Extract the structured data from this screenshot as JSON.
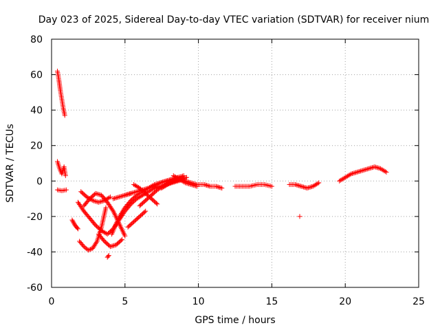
{
  "chart_data": {
    "type": "scatter",
    "title": "Day 023 of 2025, Sidereal Day-to-day VTEC variation (SDTVAR) for receiver nium",
    "xlabel": "GPS time / hours",
    "ylabel": "SDTVAR / TECUs",
    "xlim": [
      0,
      25
    ],
    "ylim": [
      -60,
      80
    ],
    "xticks": [
      0,
      5,
      10,
      15,
      20,
      25
    ],
    "yticks": [
      -60,
      -40,
      -20,
      0,
      20,
      40,
      60,
      80
    ],
    "grid": true,
    "marker": "+",
    "color": "#ff0000",
    "segments": [
      {
        "x": [
          0.4,
          0.5,
          0.6,
          0.7,
          0.8,
          0.9
        ],
        "y": [
          62,
          57,
          51,
          46,
          41,
          37
        ]
      },
      {
        "x": [
          0.4,
          0.55,
          0.7,
          0.85,
          0.95
        ],
        "y": [
          11,
          7,
          4,
          8,
          3
        ]
      },
      {
        "x": [
          0.4,
          0.7,
          1.0
        ],
        "y": [
          -5,
          -5.5,
          -5
        ]
      },
      {
        "x": [
          1.4,
          1.6,
          1.8
        ],
        "y": [
          -22,
          -25,
          -27
        ]
      },
      {
        "x": [
          1.8,
          2.2,
          2.6,
          3.0,
          3.4,
          3.8,
          4.2,
          4.6,
          5.0,
          5.4,
          5.8,
          6.2,
          6.6,
          7.0,
          7.4,
          7.8,
          8.2,
          8.6,
          9.0
        ],
        "y": [
          -12,
          -17,
          -21,
          -25,
          -28,
          -30,
          -27,
          -22,
          -17,
          -13,
          -10,
          -8,
          -6,
          -4,
          -3,
          -2,
          -1,
          0,
          1
        ]
      },
      {
        "x": [
          1.9,
          2.2,
          2.5,
          2.8,
          3.1,
          3.4,
          3.7
        ],
        "y": [
          -34,
          -37,
          -39,
          -38,
          -34,
          -26,
          -15
        ]
      },
      {
        "x": [
          2.0,
          2.4,
          2.8,
          3.2,
          3.6,
          4.0
        ],
        "y": [
          -6,
          -9,
          -11,
          -12,
          -11,
          -9
        ]
      },
      {
        "x": [
          2.2,
          2.6,
          3.0,
          3.4,
          3.8,
          4.2,
          4.6,
          5.0
        ],
        "y": [
          -14,
          -10,
          -7,
          -8,
          -12,
          -17,
          -24,
          -31
        ]
      },
      {
        "x": [
          3.2,
          3.6,
          4.0,
          4.4,
          4.8
        ],
        "y": [
          -30,
          -34,
          -37,
          -36,
          -33
        ]
      },
      {
        "x": [
          3.8,
          3.9
        ],
        "y": [
          -43,
          -42
        ]
      },
      {
        "x": [
          4.1,
          4.4,
          4.7,
          5.0,
          5.4,
          5.8,
          6.2,
          6.6,
          7.0,
          7.4,
          7.8,
          8.2,
          8.6
        ],
        "y": [
          -30,
          -24,
          -19,
          -15,
          -11,
          -8,
          -6,
          -4,
          -3,
          -1,
          0,
          1,
          2
        ]
      },
      {
        "x": [
          4.2,
          4.6,
          5.0,
          5.4
        ],
        "y": [
          -10,
          -9,
          -8,
          -7
        ]
      },
      {
        "x": [
          5.0,
          5.4,
          5.8,
          6.2,
          6.6,
          7.0,
          7.4,
          7.8,
          8.2,
          8.6,
          9.0
        ],
        "y": [
          -8,
          -7,
          -6,
          -5,
          -4,
          -2,
          -1,
          0,
          1,
          2,
          3
        ]
      },
      {
        "x": [
          5.2,
          5.6,
          6.0,
          6.4
        ],
        "y": [
          -26,
          -23,
          -20,
          -17
        ]
      },
      {
        "x": [
          5.6,
          6.0,
          6.4,
          6.8,
          7.2
        ],
        "y": [
          -2,
          -4,
          -7,
          -10,
          -13
        ]
      },
      {
        "x": [
          6.0,
          6.4,
          6.8,
          7.2,
          7.6,
          8.0,
          8.4,
          8.8,
          9.2
        ],
        "y": [
          -14,
          -11,
          -8,
          -5,
          -3,
          -1,
          0,
          1,
          2
        ]
      },
      {
        "x": [
          7.5,
          7.9,
          8.3,
          8.7,
          9.1,
          9.5,
          9.9
        ],
        "y": [
          -4,
          -2,
          0,
          1,
          0,
          -1,
          -2
        ]
      },
      {
        "x": [
          8.3,
          8.7,
          9.1,
          9.5,
          9.9
        ],
        "y": [
          3,
          1,
          -1,
          -2,
          -3
        ]
      },
      {
        "x": [
          10.0,
          10.4,
          10.8,
          11.2,
          11.6
        ],
        "y": [
          -2,
          -2,
          -3,
          -3,
          -4
        ]
      },
      {
        "x": [
          12.5,
          13.0,
          13.5,
          14.0,
          14.5,
          15.0
        ],
        "y": [
          -3,
          -3,
          -3,
          -2,
          -2,
          -3
        ]
      },
      {
        "x": [
          16.2,
          16.6,
          17.0,
          17.4,
          17.8,
          18.2
        ],
        "y": [
          -2,
          -2,
          -3,
          -4,
          -3,
          -1
        ]
      },
      {
        "x": [
          16.9
        ],
        "y": [
          -20
        ]
      },
      {
        "x": [
          19.6,
          20.0,
          20.4,
          20.8,
          21.2,
          21.6,
          22.0,
          22.4,
          22.8
        ],
        "y": [
          0,
          2,
          4,
          5,
          6,
          7,
          8,
          7,
          5
        ]
      }
    ]
  }
}
